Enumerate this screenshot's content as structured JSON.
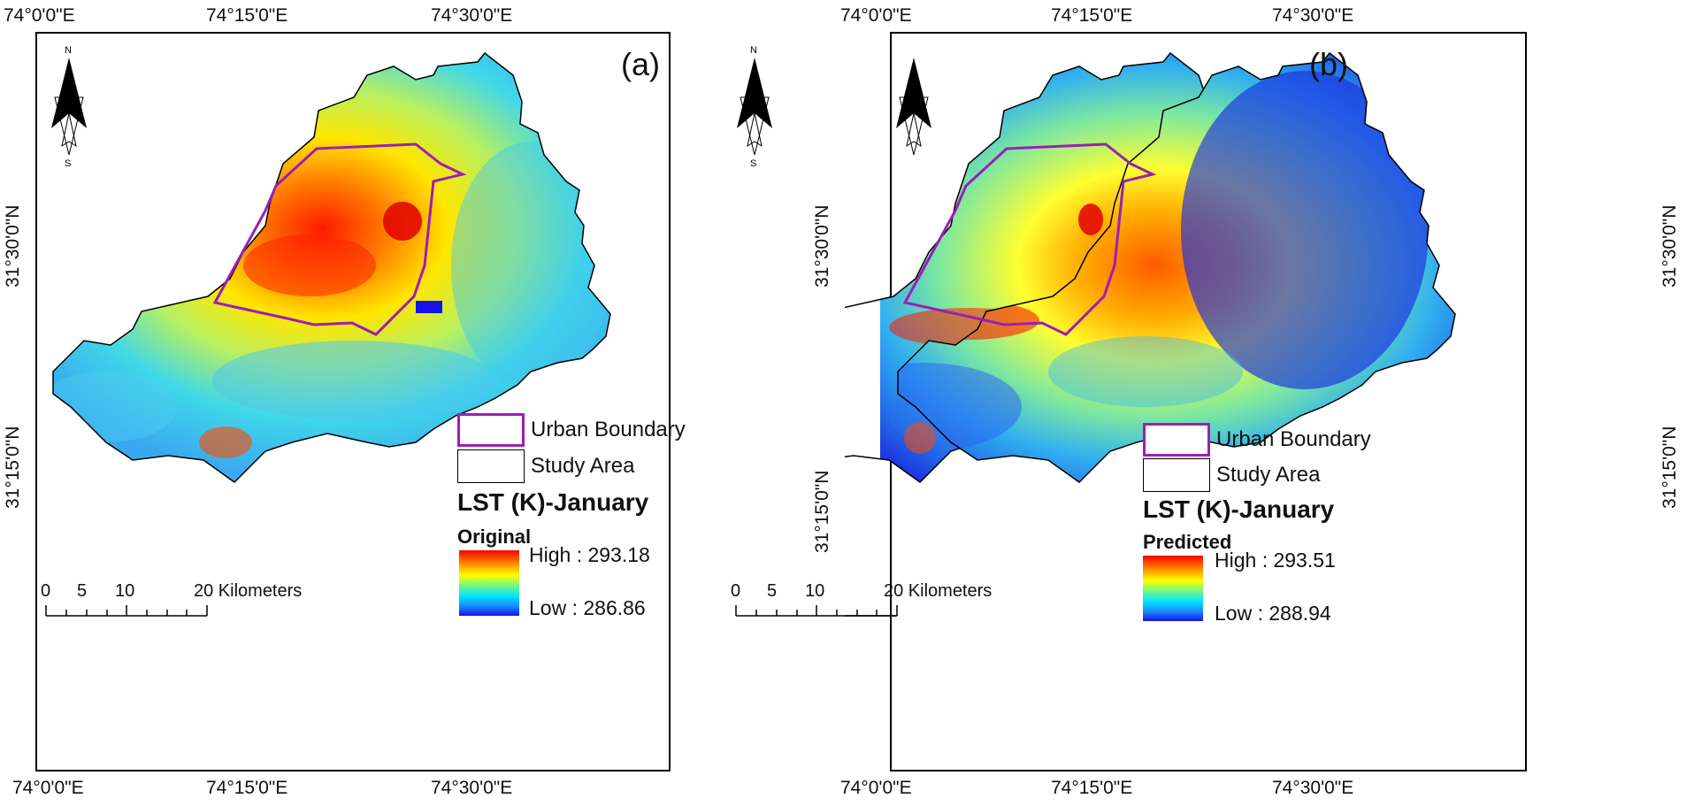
{
  "axes": {
    "top_ticks": [
      "74°0'0\"E",
      "74°15'0\"E",
      "74°30'0\"E"
    ],
    "bottom_ticks": [
      "74°0'0\"E",
      "74°15'0\"E",
      "74°30'0\"E"
    ],
    "left_ticks": [
      "31°30'0\"N",
      "31°15'0\"N"
    ],
    "right_ticks_b": [
      "31°30'0\"N",
      "31°15'0\"N"
    ]
  },
  "panels": [
    {
      "letter": "(a)",
      "north_label": "N",
      "south_label": "S",
      "legend": {
        "urban_boundary": "Urban Boundary",
        "study_area": "Study Area",
        "urban_color": "#9b1fb5"
      },
      "lst_title": "LST (K)-January",
      "ramp_title": "Original",
      "high_label": "High : 293.18",
      "low_label": "Low : 286.86",
      "scale": {
        "labels": [
          "0",
          "5",
          "10",
          "20 Kilometers"
        ]
      }
    },
    {
      "letter": "(b)",
      "north_label": "N",
      "south_label": "S",
      "legend": {
        "urban_boundary": "Urban Boundary",
        "study_area": "Study Area",
        "urban_color": "#9b1fb5"
      },
      "lst_title": "LST (K)-January",
      "ramp_title": "Predicted",
      "high_label": "High : 293.51",
      "low_label": "Low : 288.94",
      "scale": {
        "labels": [
          "0",
          "5",
          "10",
          "20 Kilometers"
        ]
      }
    }
  ],
  "colors": {
    "ramp_high": "#ff0000",
    "ramp_mid": "#ffff00",
    "ramp_low": "#1414e6"
  }
}
